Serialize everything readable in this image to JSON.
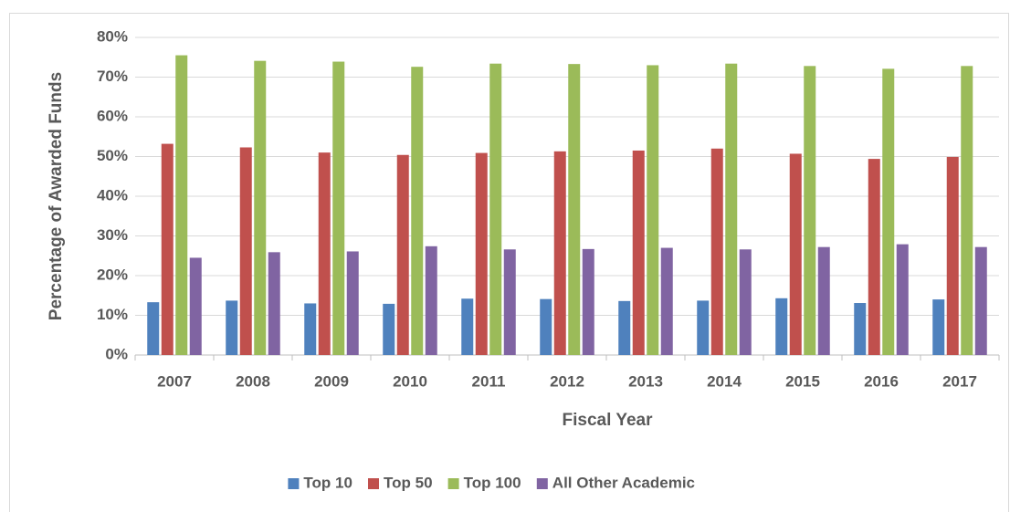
{
  "chart_data": {
    "type": "bar",
    "xlabel": "Fiscal Year",
    "ylabel": "Percentage of Awarded Funds",
    "categories": [
      "2007",
      "2008",
      "2009",
      "2010",
      "2011",
      "2012",
      "2013",
      "2014",
      "2015",
      "2016",
      "2017"
    ],
    "series": [
      {
        "name": "Top 10",
        "color": "#4f81bd",
        "values": [
          13.3,
          13.7,
          13.0,
          12.9,
          14.2,
          14.1,
          13.6,
          13.7,
          14.3,
          13.1,
          14.0
        ]
      },
      {
        "name": "Top 50",
        "color": "#c0504d",
        "values": [
          53.2,
          52.3,
          51.0,
          50.4,
          50.9,
          51.3,
          51.5,
          52.0,
          50.7,
          49.4,
          49.9
        ]
      },
      {
        "name": "Top 100",
        "color": "#9bbb59",
        "values": [
          75.5,
          74.1,
          73.9,
          72.6,
          73.4,
          73.3,
          73.0,
          73.4,
          72.8,
          72.1,
          72.8
        ]
      },
      {
        "name": "All Other Academic",
        "color": "#8064a2",
        "values": [
          24.5,
          25.9,
          26.1,
          27.4,
          26.6,
          26.7,
          27.0,
          26.6,
          27.2,
          27.9,
          27.2
        ]
      }
    ],
    "ylim": [
      0,
      80
    ],
    "yticks": [
      {
        "value": 0,
        "label": "0%"
      },
      {
        "value": 10,
        "label": "10%"
      },
      {
        "value": 20,
        "label": "20%"
      },
      {
        "value": 30,
        "label": "30%"
      },
      {
        "value": 40,
        "label": "40%"
      },
      {
        "value": 50,
        "label": "50%"
      },
      {
        "value": 60,
        "label": "60%"
      },
      {
        "value": 70,
        "label": "70%"
      },
      {
        "value": 80,
        "label": "80%"
      }
    ],
    "grid": true,
    "legend": "bottom"
  }
}
